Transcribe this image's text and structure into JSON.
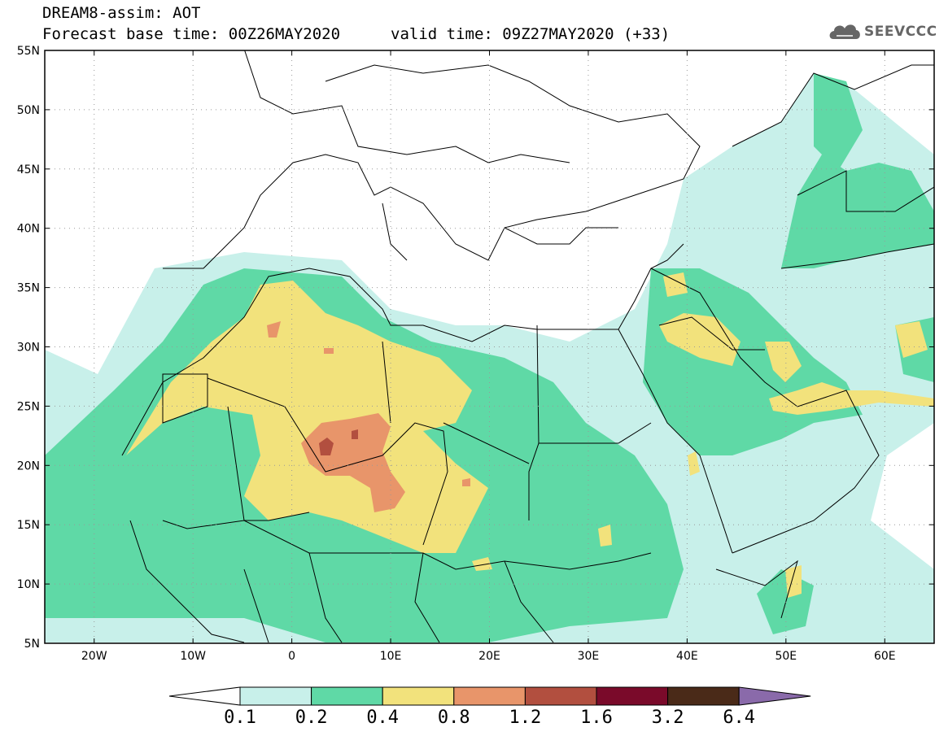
{
  "title": {
    "line1": "DREAM8-assim: AOT",
    "line2": "Forecast base time: 00Z26MAY2020",
    "valid": "valid time: 09Z27MAY2020 (+33)"
  },
  "logo": {
    "text": "SEEVCCC",
    "icon": "cloud-icon"
  },
  "map": {
    "lon_range": [
      -25,
      65
    ],
    "lat_range": [
      5,
      55
    ],
    "lon_ticks": [
      {
        "lon": -20,
        "label": "20W"
      },
      {
        "lon": -10,
        "label": "10W"
      },
      {
        "lon": 0,
        "label": "0"
      },
      {
        "lon": 10,
        "label": "10E"
      },
      {
        "lon": 20,
        "label": "20E"
      },
      {
        "lon": 30,
        "label": "30E"
      },
      {
        "lon": 40,
        "label": "40E"
      },
      {
        "lon": 50,
        "label": "50E"
      },
      {
        "lon": 60,
        "label": "60E"
      }
    ],
    "lat_ticks": [
      {
        "lat": 55,
        "label": "55N"
      },
      {
        "lat": 50,
        "label": "50N"
      },
      {
        "lat": 45,
        "label": "45N"
      },
      {
        "lat": 40,
        "label": "40N"
      },
      {
        "lat": 35,
        "label": "35N"
      },
      {
        "lat": 30,
        "label": "30N"
      },
      {
        "lat": 25,
        "label": "25N"
      },
      {
        "lat": 20,
        "label": "20N"
      },
      {
        "lat": 15,
        "label": "15N"
      },
      {
        "lat": 10,
        "label": "10N"
      },
      {
        "lat": 5,
        "label": "5N"
      }
    ],
    "grid": true
  },
  "colorbar": {
    "colors": [
      "#ffffff",
      "#c8f0ea",
      "#5fd9a6",
      "#f2e27c",
      "#e8956a",
      "#b24f3f",
      "#7a0a2a",
      "#4a2a18",
      "#8a6aaa"
    ],
    "labels": [
      "0.1",
      "0.2",
      "0.4",
      "0.8",
      "1.2",
      "1.6",
      "3.2",
      "6.4"
    ]
  }
}
